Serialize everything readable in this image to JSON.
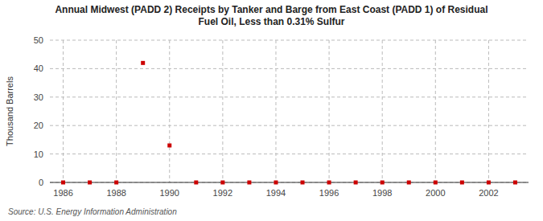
{
  "chart_data": {
    "type": "scatter",
    "title": "Annual Midwest (PADD 2) Receipts by Tanker and Barge from East Coast (PADD 1) of Residual\nFuel Oil, Less than 0.31% Sulfur",
    "ylabel": "Thousand Barrels",
    "source": "Source: U.S. Energy Information Administration",
    "x": [
      1986,
      1987,
      1988,
      1989,
      1990,
      1991,
      1992,
      1993,
      1994,
      1995,
      1996,
      1997,
      1998,
      1999,
      2000,
      2001,
      2002,
      2003
    ],
    "values": [
      0,
      0,
      0,
      42,
      13,
      0,
      0,
      0,
      0,
      0,
      0,
      0,
      0,
      0,
      0,
      0,
      0,
      0
    ],
    "color": "#cc0000",
    "marker": "square",
    "xlim": [
      1985.5,
      2003.5
    ],
    "ylim": [
      0,
      50
    ],
    "xticks": [
      1986,
      1988,
      1990,
      1992,
      1994,
      1996,
      1998,
      2000,
      2002
    ],
    "yticks": [
      0,
      10,
      20,
      30,
      40,
      50
    ],
    "grid": true
  }
}
